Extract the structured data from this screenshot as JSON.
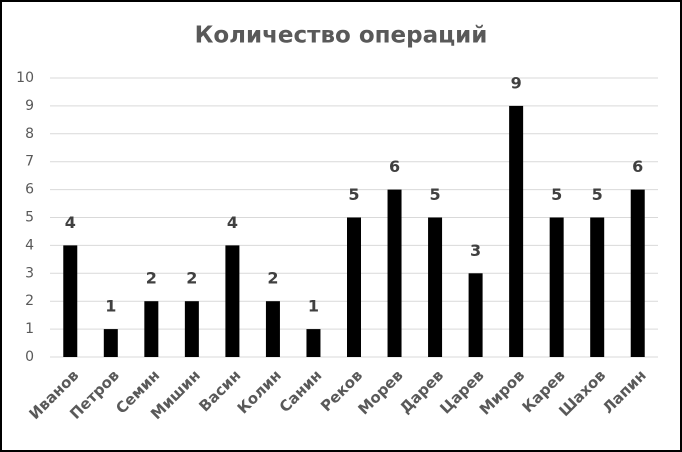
{
  "chart_data": {
    "type": "bar",
    "title": "Количество операций",
    "categories": [
      "Иванов",
      "Петров",
      "Семин",
      "Мишин",
      "Васин",
      "Колин",
      "Санин",
      "Реков",
      "Морев",
      "Дарев",
      "Царев",
      "Миров",
      "Карев",
      "Шахов",
      "Лапин"
    ],
    "values": [
      4,
      1,
      2,
      2,
      4,
      2,
      1,
      5,
      6,
      5,
      3,
      9,
      5,
      5,
      6
    ],
    "color": "#000000",
    "ylim": [
      0,
      10
    ],
    "yticks": [
      0,
      1,
      2,
      3,
      4,
      5,
      6,
      7,
      8,
      9,
      10
    ],
    "grid": true,
    "data_labels": true
  }
}
